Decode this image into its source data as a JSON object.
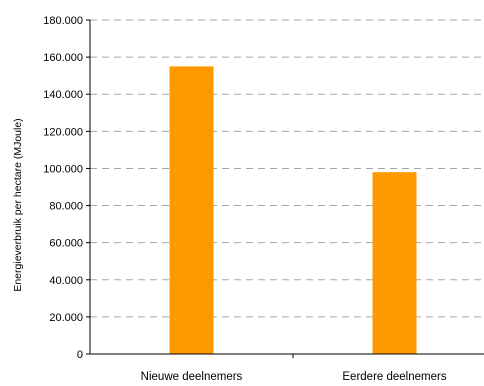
{
  "chart_data": {
    "type": "bar",
    "categories": [
      "Nieuwe deelnemers",
      "Eerdere deelnemers"
    ],
    "values": [
      155000,
      98000
    ],
    "title": "",
    "xlabel": "",
    "ylabel": "Energieverbruik per hectare (MJoule)",
    "ylim": [
      0,
      180000
    ],
    "yticks": [
      0,
      20000,
      40000,
      60000,
      80000,
      100000,
      120000,
      140000,
      160000,
      180000
    ],
    "ytick_labels": [
      "0",
      "20.000",
      "40.000",
      "60.000",
      "80.000",
      "100.000",
      "120.000",
      "140.000",
      "160.000",
      "180.000"
    ],
    "grid": "horizontal dashed",
    "legend": "none",
    "colors": {
      "bar": "#ff9900",
      "grid": "#a6a6a6",
      "axis": "#000000"
    }
  }
}
